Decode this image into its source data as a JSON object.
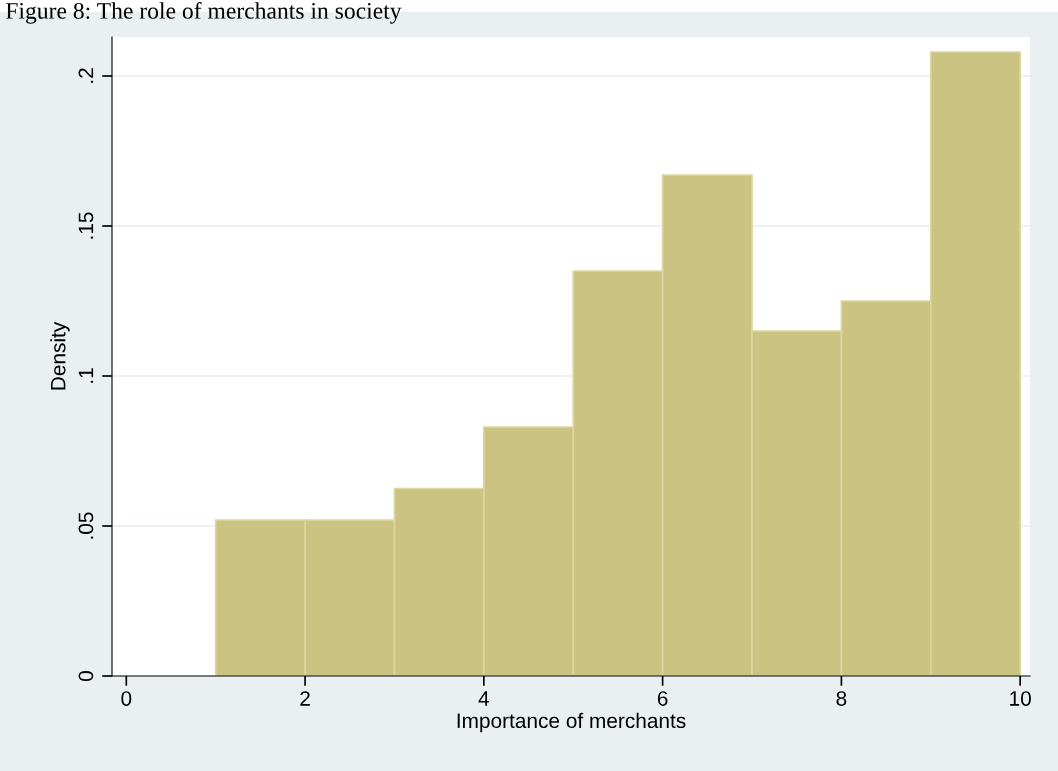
{
  "chart_data": {
    "type": "histogram",
    "title": "Figure 8: The role of merchants in society",
    "xlabel": "Importance of merchants",
    "ylabel": "Density",
    "bins": [
      1,
      2,
      3,
      4,
      5,
      6,
      7,
      8,
      9,
      10
    ],
    "values": [
      0.052,
      0.052,
      0.0625,
      0.083,
      0.135,
      0.167,
      0.115,
      0.125,
      0.208
    ],
    "color": "#cbc381",
    "xlim": [
      -0.16,
      10.11
    ],
    "xticks": [
      0,
      2,
      4,
      6,
      8,
      10
    ],
    "ylim": [
      0,
      0.213
    ],
    "yticks": [
      {
        "value": 0,
        "label": "0"
      },
      {
        "value": 0.05,
        "label": ".05"
      },
      {
        "value": 0.1,
        "label": ".1"
      },
      {
        "value": 0.15,
        "label": ".15"
      },
      {
        "value": 0.2,
        "label": ".2"
      }
    ],
    "grid": "y"
  }
}
